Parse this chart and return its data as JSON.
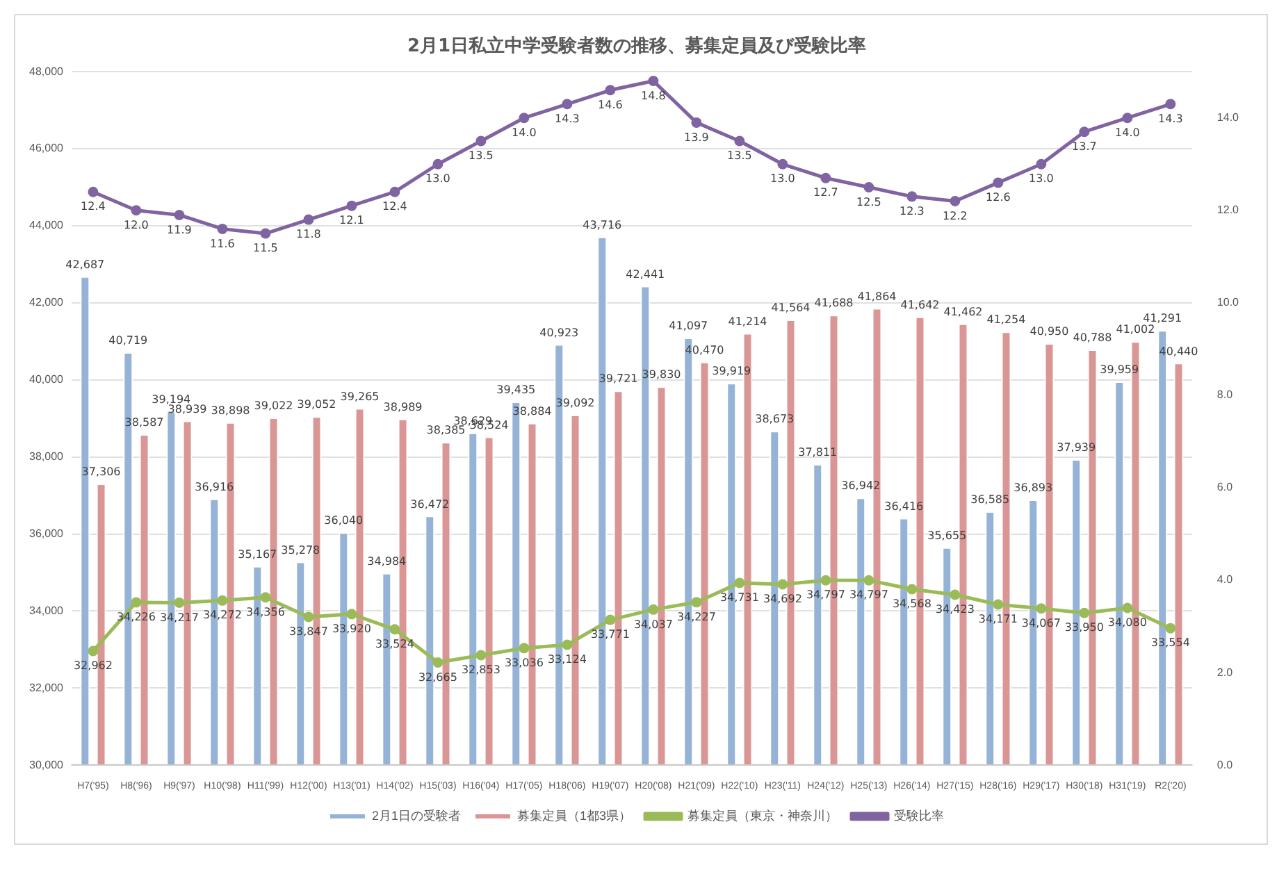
{
  "chart_data": {
    "type": "bar",
    "title": "2月1日私立中学受験者数の推移、募集定員及び受験比率",
    "categories": [
      "H7('95)",
      "H8('96)",
      "H9('97)",
      "H10('98)",
      "H11('99)",
      "H12('00)",
      "H13('01)",
      "H14('02)",
      "H15('03)",
      "H16('04)",
      "H17('05)",
      "H18('06)",
      "H19('07)",
      "H20('08)",
      "H21('09)",
      "H22('10)",
      "H23('11)",
      "H24('12)",
      "H25('13)",
      "H26('14)",
      "H27('15)",
      "H28('16)",
      "H29('17)",
      "H30('18)",
      "H31('19)",
      "R2('20)"
    ],
    "series": [
      {
        "name": "2月1日の受験者",
        "color": "#95b3d7",
        "values": [
          42687,
          40719,
          39194,
          36916,
          35167,
          35278,
          36040,
          34984,
          36472,
          38629,
          39435,
          40923,
          43716,
          42441,
          41097,
          39919,
          38673,
          37811,
          36942,
          36416,
          35655,
          36585,
          36893,
          37939,
          39959,
          41291
        ],
        "value_labels": [
          "42,687",
          "40,719",
          "39,194",
          "36,916",
          "35,167",
          "35,278",
          "36,040",
          "34,984",
          "36,472",
          "38,629",
          "39,435",
          "40,923",
          "43,716",
          "42,441",
          "41,097",
          "39,919",
          "38,673",
          "37,811",
          "36,942",
          "36,416",
          "35,655",
          "36,585",
          "36,893",
          "37,939",
          "39,959",
          "41,291"
        ]
      },
      {
        "name": "募集定員（1都3県）",
        "color": "#da9694",
        "values": [
          37306,
          38587,
          38939,
          38898,
          39022,
          39052,
          39265,
          38989,
          38385,
          38524,
          38884,
          39092,
          39721,
          39830,
          40470,
          41214,
          41564,
          41688,
          41864,
          41642,
          41462,
          41254,
          40950,
          40788,
          41002,
          40440
        ],
        "value_labels": [
          "37,306",
          "38,587",
          "38,939",
          "38,898",
          "39,022",
          "39,052",
          "39,265",
          "38,989",
          "38,385",
          "38,524",
          "38,884",
          "39,092",
          "39,721",
          "39,830",
          "40,470",
          "41,214",
          "41,564",
          "41,688",
          "41,864",
          "41,642",
          "41,462",
          "41,254",
          "40,950",
          "40,788",
          "41,002",
          "40,440"
        ]
      },
      {
        "name": "募集定員（東京・神奈川）",
        "type": "line",
        "color": "#9bbb59",
        "marker": "circle",
        "values": [
          32962,
          34226,
          34217,
          34272,
          34356,
          33847,
          33920,
          33524,
          32665,
          32853,
          33036,
          33124,
          33771,
          34037,
          34227,
          34731,
          34692,
          34797,
          34797,
          34568,
          34423,
          34171,
          34067,
          33950,
          34080,
          33554
        ],
        "value_labels": [
          "32,962",
          "34,226",
          "34,217",
          "34,272",
          "34,356",
          "33,847",
          "33,920",
          "33,524",
          "32,665",
          "32,853",
          "33,036",
          "33,124",
          "33,771",
          "34,037",
          "34,227",
          "34,731",
          "34,692",
          "34,797",
          "34,797",
          "34,568",
          "34,423",
          "34,171",
          "34,067",
          "33,950",
          "34,080",
          "33,554"
        ]
      },
      {
        "name": "受験比率",
        "type": "line",
        "axis": "y2",
        "color": "#8064a2",
        "marker": "circle",
        "values": [
          12.4,
          12.0,
          11.9,
          11.6,
          11.5,
          11.8,
          12.1,
          12.4,
          13.0,
          13.5,
          14.0,
          14.3,
          14.6,
          14.8,
          13.9,
          13.5,
          13.0,
          12.7,
          12.5,
          12.3,
          12.2,
          12.6,
          13.0,
          13.7,
          14.0,
          14.3
        ],
        "value_labels": [
          "12.4",
          "12.0",
          "11.9",
          "11.6",
          "11.5",
          "11.8",
          "12.1",
          "12.4",
          "13.0",
          "13.5",
          "14.0",
          "14.3",
          "14.6",
          "14.8",
          "13.9",
          "13.5",
          "13.0",
          "12.7",
          "12.5",
          "12.3",
          "12.2",
          "12.6",
          "13.0",
          "13.7",
          "14.0",
          "14.3"
        ]
      }
    ],
    "ylim": [
      30000,
      48000
    ],
    "yticks": [
      {
        "value": 30000,
        "label": "30,000"
      },
      {
        "value": 32000,
        "label": "32,000"
      },
      {
        "value": 34000,
        "label": "34,000"
      },
      {
        "value": 36000,
        "label": "36,000"
      },
      {
        "value": 38000,
        "label": "38,000"
      },
      {
        "value": 40000,
        "label": "40,000"
      },
      {
        "value": 42000,
        "label": "42,000"
      },
      {
        "value": 44000,
        "label": "44,000"
      },
      {
        "value": 46000,
        "label": "46,000"
      },
      {
        "value": 48000,
        "label": "48,000"
      }
    ],
    "y2lim": [
      0,
      15
    ],
    "y2ticks": [
      {
        "value": 0,
        "label": "0.0"
      },
      {
        "value": 2,
        "label": "2.0"
      },
      {
        "value": 4,
        "label": "4.0"
      },
      {
        "value": 6,
        "label": "6.0"
      },
      {
        "value": 8,
        "label": "8.0"
      },
      {
        "value": 10,
        "label": "10.0"
      },
      {
        "value": 12,
        "label": "12.0"
      },
      {
        "value": 14,
        "label": "14.0"
      }
    ],
    "grid": "y",
    "legend": "bottom"
  }
}
